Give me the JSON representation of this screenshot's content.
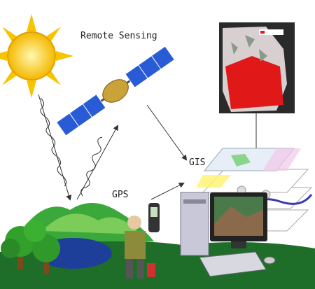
{
  "labels": {
    "remote_sensing": "Remote Sensing",
    "gis": "GIS",
    "gps": "GPS"
  }
}
